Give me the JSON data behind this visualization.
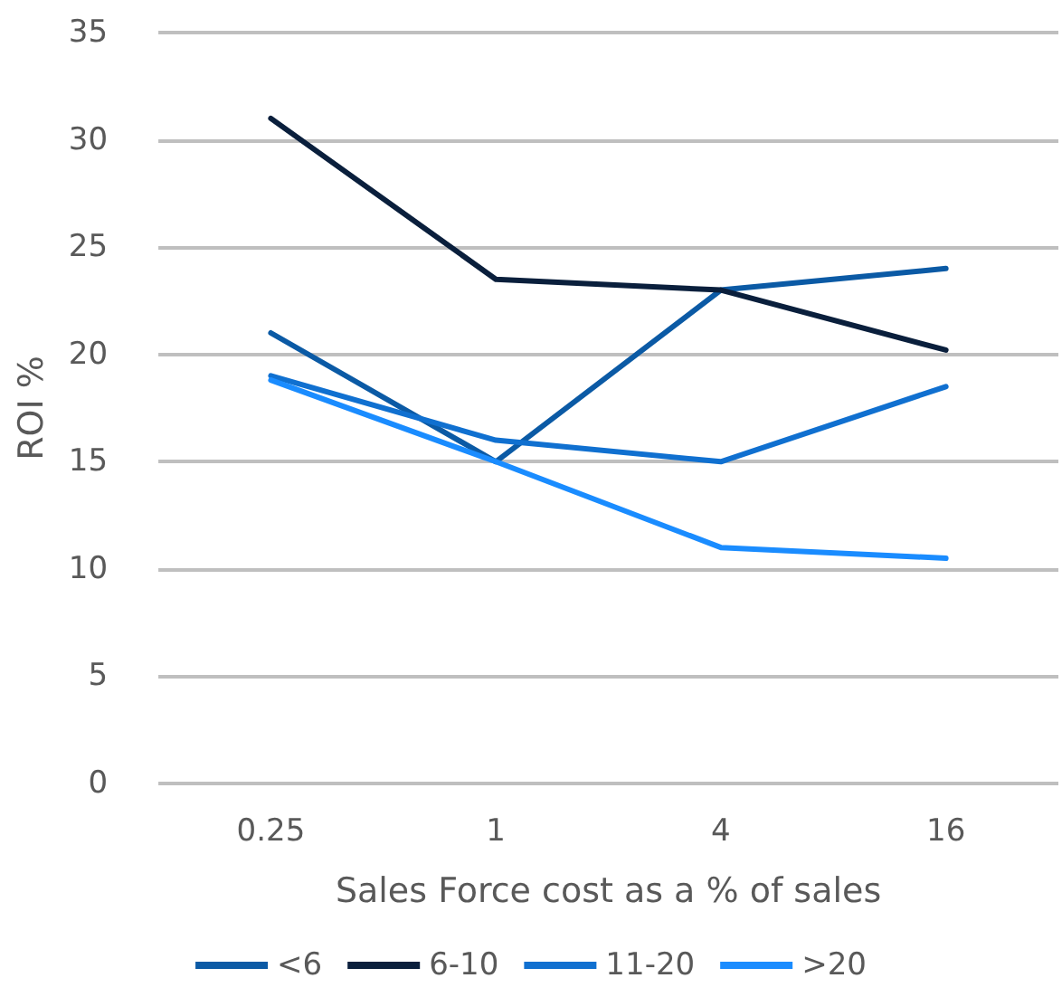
{
  "chart_data": {
    "type": "line",
    "xlabel": "Sales Force cost as a % of sales",
    "ylabel": "ROI %",
    "categories": [
      "0.25",
      "1",
      "4",
      "16"
    ],
    "series": [
      {
        "name": "<6",
        "color": "#0b5aa5",
        "values": [
          21,
          15,
          23,
          24
        ]
      },
      {
        "name": "6-10",
        "color": "#0a1f3c",
        "values": [
          31,
          23.5,
          23,
          20.2
        ]
      },
      {
        "name": "11-20",
        "color": "#1070d0",
        "values": [
          19,
          16,
          15,
          18.5
        ]
      },
      {
        "name": ">20",
        "color": "#1a8cff",
        "values": [
          18.8,
          15,
          11,
          10.5
        ]
      }
    ],
    "ylim": [
      0,
      35
    ],
    "yticks": [
      0,
      5,
      10,
      15,
      20,
      25,
      30,
      35
    ],
    "grid": "y",
    "legend": "bottom",
    "marker": "none",
    "line_style": "solid"
  }
}
